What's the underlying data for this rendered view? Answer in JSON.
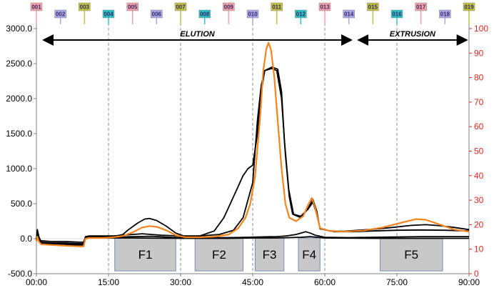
{
  "chart_data": {
    "type": "line",
    "title": "",
    "x_range_min": [
      0,
      90
    ],
    "x_tick_labels": [
      "00:00",
      "15:00",
      "30:00",
      "45:00",
      "60:00",
      "75:00",
      "90:00"
    ],
    "x_ticks_min": [
      0,
      15,
      30,
      45,
      60,
      75,
      90
    ],
    "y_left": {
      "ylim": [
        -500,
        3000
      ],
      "ticks": [
        -500,
        0,
        500,
        1000,
        1500,
        2000,
        2500,
        3000
      ],
      "tick_labels": [
        "-500.0",
        "0.0",
        "500.0",
        "1000.0",
        "1500.0",
        "2000.0",
        "2500.0",
        "3000.0"
      ],
      "color": "#000000"
    },
    "y_right": {
      "ylim": [
        0,
        100
      ],
      "ticks": [
        0,
        10,
        20,
        30,
        40,
        50,
        60,
        70,
        80,
        90,
        100
      ],
      "tick_labels": [
        "0",
        "10",
        "20",
        "30",
        "40",
        "50",
        "60",
        "70",
        "80",
        "90",
        "100"
      ],
      "color": "#e8251e"
    },
    "grid": "vertical dashed at x ticks",
    "markers": [
      {
        "label": "001",
        "x": 0,
        "color": "#f4a0a6",
        "row": 0
      },
      {
        "label": "002",
        "x": 5,
        "color": "#a9a9e6",
        "row": 1
      },
      {
        "label": "003",
        "x": 10,
        "color": "#c2c23e",
        "row": 0
      },
      {
        "label": "004",
        "x": 15,
        "color": "#2bc2c2",
        "row": 1
      },
      {
        "label": "005",
        "x": 20,
        "color": "#f4a0a6",
        "row": 0
      },
      {
        "label": "006",
        "x": 25,
        "color": "#a9a9e6",
        "row": 1
      },
      {
        "label": "007",
        "x": 30,
        "color": "#c2c23e",
        "row": 0
      },
      {
        "label": "008",
        "x": 35,
        "color": "#2bc2c2",
        "row": 1
      },
      {
        "label": "009",
        "x": 40,
        "color": "#f4a0a6",
        "row": 0
      },
      {
        "label": "010",
        "x": 45,
        "color": "#a9a9e6",
        "row": 1
      },
      {
        "label": "011",
        "x": 50,
        "color": "#c2c23e",
        "row": 0
      },
      {
        "label": "012",
        "x": 55,
        "color": "#2bc2c2",
        "row": 1
      },
      {
        "label": "013",
        "x": 60,
        "color": "#f4a0a6",
        "row": 0
      },
      {
        "label": "014",
        "x": 65,
        "color": "#a9a9e6",
        "row": 1
      },
      {
        "label": "015",
        "x": 70,
        "color": "#c2c23e",
        "row": 0
      },
      {
        "label": "016",
        "x": 75,
        "color": "#2bc2c2",
        "row": 1
      },
      {
        "label": "017",
        "x": 80,
        "color": "#f4a0a6",
        "row": 0
      },
      {
        "label": "018",
        "x": 85,
        "color": "#a9a9e6",
        "row": 1
      },
      {
        "label": "019",
        "x": 90,
        "color": "#c2c23e",
        "row": 0
      }
    ],
    "sections": [
      {
        "label": "ELUTION",
        "x_start": 1.5,
        "x_end": 65.5
      },
      {
        "label": "EXTRUSION",
        "x_start": 67,
        "x_end": 89.5
      }
    ],
    "fractions": [
      {
        "label": "F1",
        "x_start": 16.3,
        "x_end": 29,
        "y_top": 10,
        "y_bottom": -460
      },
      {
        "label": "F2",
        "x_start": 33,
        "x_end": 43,
        "y_top": 10,
        "y_bottom": -460
      },
      {
        "label": "F3",
        "x_start": 45.5,
        "x_end": 51.5,
        "y_top": 10,
        "y_bottom": -460
      },
      {
        "label": "F4",
        "x_start": 54.5,
        "x_end": 59,
        "y_top": 10,
        "y_bottom": -460
      },
      {
        "label": "F5",
        "x_start": 71.5,
        "x_end": 84.5,
        "y_top": 10,
        "y_bottom": -460
      }
    ],
    "series": [
      {
        "color": "#000000",
        "axis": "left",
        "points": [
          [
            0,
            -20
          ],
          [
            0.2,
            110
          ],
          [
            0.5,
            20
          ],
          [
            1,
            -60
          ],
          [
            3,
            -70
          ],
          [
            6,
            -80
          ],
          [
            7,
            -90
          ],
          [
            9,
            -90
          ],
          [
            9.8,
            -90
          ],
          [
            10.2,
            10
          ],
          [
            11,
            20
          ],
          [
            14,
            20
          ],
          [
            16,
            30
          ],
          [
            18,
            60
          ],
          [
            19,
            120
          ],
          [
            21,
            220
          ],
          [
            22.5,
            280
          ],
          [
            23.5,
            290
          ],
          [
            25,
            260
          ],
          [
            27,
            180
          ],
          [
            29,
            80
          ],
          [
            31,
            30
          ],
          [
            34,
            40
          ],
          [
            37,
            110
          ],
          [
            39,
            300
          ],
          [
            41,
            600
          ],
          [
            43,
            900
          ],
          [
            44,
            1000
          ],
          [
            45,
            1050
          ],
          [
            46,
            1500
          ],
          [
            46.8,
            2100
          ],
          [
            47.5,
            2400
          ],
          [
            49,
            2450
          ],
          [
            50.2,
            2420
          ],
          [
            51,
            2100
          ],
          [
            51.6,
            1400
          ],
          [
            52.5,
            700
          ],
          [
            53.5,
            350
          ],
          [
            55,
            320
          ],
          [
            56.5,
            420
          ],
          [
            57.5,
            520
          ],
          [
            58.2,
            380
          ],
          [
            59,
            150
          ],
          [
            61,
            110
          ],
          [
            64,
            105
          ],
          [
            67,
            120
          ],
          [
            70,
            135
          ],
          [
            74,
            160
          ],
          [
            78,
            190
          ],
          [
            81,
            200
          ],
          [
            84,
            185
          ],
          [
            87,
            160
          ],
          [
            90,
            130
          ]
        ]
      },
      {
        "color": "#000000",
        "axis": "left",
        "points": [
          [
            0,
            -20
          ],
          [
            0.2,
            130
          ],
          [
            0.5,
            30
          ],
          [
            1,
            -50
          ],
          [
            3,
            -60
          ],
          [
            6,
            -60
          ],
          [
            9,
            -70
          ],
          [
            9.8,
            -70
          ],
          [
            10.2,
            30
          ],
          [
            11,
            40
          ],
          [
            14,
            40
          ],
          [
            16,
            40
          ],
          [
            18,
            50
          ],
          [
            20,
            60
          ],
          [
            22,
            70
          ],
          [
            24,
            60
          ],
          [
            26,
            50
          ],
          [
            30,
            40
          ],
          [
            34,
            40
          ],
          [
            38,
            60
          ],
          [
            41,
            120
          ],
          [
            43,
            300
          ],
          [
            45,
            800
          ],
          [
            46,
            1700
          ],
          [
            46.8,
            2200
          ],
          [
            47.5,
            2400
          ],
          [
            49,
            2430
          ],
          [
            50,
            2400
          ],
          [
            51,
            2000
          ],
          [
            51.8,
            1200
          ],
          [
            52.6,
            600
          ],
          [
            53.3,
            350
          ],
          [
            55,
            300
          ],
          [
            56.5,
            430
          ],
          [
            57.5,
            560
          ],
          [
            58.3,
            400
          ],
          [
            59,
            140
          ],
          [
            62,
            100
          ],
          [
            66,
            100
          ],
          [
            70,
            110
          ],
          [
            75,
            120
          ],
          [
            80,
            125
          ],
          [
            85,
            120
          ],
          [
            90,
            110
          ]
        ]
      },
      {
        "color": "#000000",
        "axis": "left",
        "points": [
          [
            0,
            0
          ],
          [
            0.2,
            60
          ],
          [
            0.5,
            -20
          ],
          [
            1,
            -60
          ],
          [
            3,
            -70
          ],
          [
            6,
            -70
          ],
          [
            9,
            -80
          ],
          [
            9.8,
            -80
          ],
          [
            10.2,
            15
          ],
          [
            11,
            20
          ],
          [
            16,
            20
          ],
          [
            20,
            30
          ],
          [
            24,
            35
          ],
          [
            28,
            20
          ],
          [
            32,
            15
          ],
          [
            40,
            15
          ],
          [
            44,
            20
          ],
          [
            46,
            25
          ],
          [
            50,
            30
          ],
          [
            52,
            40
          ],
          [
            54,
            60
          ],
          [
            55,
            80
          ],
          [
            56,
            100
          ],
          [
            57,
            80
          ],
          [
            58,
            50
          ],
          [
            60,
            20
          ],
          [
            65,
            15
          ],
          [
            70,
            20
          ],
          [
            80,
            30
          ],
          [
            90,
            30
          ]
        ]
      },
      {
        "color": "#000000",
        "axis": "left",
        "points": [
          [
            0,
            -10
          ],
          [
            0.5,
            0
          ],
          [
            1,
            -30
          ],
          [
            3,
            -40
          ],
          [
            6,
            -40
          ],
          [
            9,
            -50
          ],
          [
            9.8,
            -50
          ],
          [
            10.2,
            10
          ],
          [
            20,
            10
          ],
          [
            30,
            5
          ],
          [
            40,
            5
          ],
          [
            45,
            10
          ],
          [
            50,
            10
          ],
          [
            55,
            20
          ],
          [
            57,
            30
          ],
          [
            60,
            10
          ],
          [
            70,
            5
          ],
          [
            90,
            5
          ]
        ]
      },
      {
        "color": "#f5841f",
        "axis": "left",
        "points": [
          [
            0,
            -40
          ],
          [
            0.2,
            30
          ],
          [
            0.5,
            -40
          ],
          [
            1,
            -80
          ],
          [
            3,
            -90
          ],
          [
            6,
            -100
          ],
          [
            9,
            -110
          ],
          [
            9.8,
            -110
          ],
          [
            10.2,
            0
          ],
          [
            11,
            10
          ],
          [
            14,
            10
          ],
          [
            16,
            20
          ],
          [
            18,
            40
          ],
          [
            20,
            90
          ],
          [
            22,
            160
          ],
          [
            23.5,
            180
          ],
          [
            25,
            170
          ],
          [
            27,
            120
          ],
          [
            29,
            50
          ],
          [
            31,
            20
          ],
          [
            34,
            20
          ],
          [
            37,
            30
          ],
          [
            40,
            60
          ],
          [
            42,
            150
          ],
          [
            43.5,
            300
          ],
          [
            44.5,
            500
          ],
          [
            45.5,
            900
          ],
          [
            46.5,
            1700
          ],
          [
            47.2,
            2400
          ],
          [
            47.8,
            2700
          ],
          [
            48.3,
            2800
          ],
          [
            48.8,
            2700
          ],
          [
            49.5,
            2300
          ],
          [
            50.3,
            1600
          ],
          [
            51,
            1000
          ],
          [
            51.8,
            500
          ],
          [
            52.6,
            300
          ],
          [
            54,
            250
          ],
          [
            55.5,
            320
          ],
          [
            56.5,
            480
          ],
          [
            57.3,
            580
          ],
          [
            58,
            440
          ],
          [
            59,
            150
          ],
          [
            61,
            110
          ],
          [
            64,
            100
          ],
          [
            68,
            115
          ],
          [
            72,
            160
          ],
          [
            76,
            230
          ],
          [
            79,
            280
          ],
          [
            81,
            270
          ],
          [
            84,
            200
          ],
          [
            87,
            130
          ],
          [
            90,
            100
          ]
        ]
      }
    ]
  }
}
